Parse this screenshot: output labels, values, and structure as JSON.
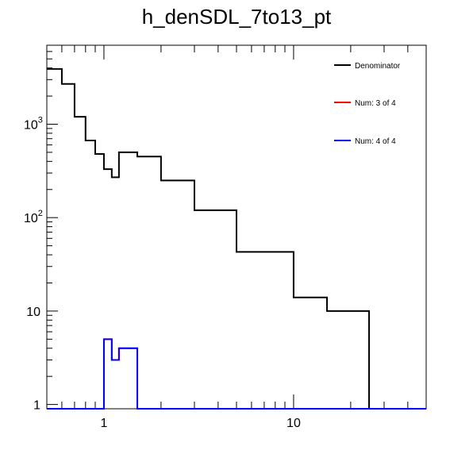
{
  "chart_data": {
    "type": "histogram-step",
    "title": "h_denSDL_7to13_pt",
    "xlabel": "",
    "ylabel": "",
    "x_scale": "log",
    "y_scale": "log",
    "xlim": [
      0.5,
      50
    ],
    "ylim": [
      0.9,
      7000
    ],
    "grid": false,
    "legend_position": "top-right",
    "x_tick_labels": [
      {
        "value": 1,
        "label": "1"
      },
      {
        "value": 10,
        "label": "10"
      }
    ],
    "y_tick_labels": [
      {
        "value": 1,
        "label": "1"
      },
      {
        "value": 10,
        "label": "10"
      },
      {
        "value": 100,
        "label": "10",
        "sup": "2"
      },
      {
        "value": 1000,
        "label": "10",
        "sup": "3"
      }
    ],
    "bin_edges": [
      0.5,
      0.6,
      0.7,
      0.8,
      0.9,
      1.0,
      1.1,
      1.2,
      1.5,
      2.0,
      3.0,
      5.0,
      10.0,
      15.0,
      25.0,
      50.0
    ],
    "series": [
      {
        "name": "Denominator",
        "color": "#000000",
        "values": [
          3900,
          2700,
          1200,
          670,
          480,
          330,
          270,
          500,
          450,
          250,
          120,
          43,
          14,
          10,
          0
        ]
      },
      {
        "name": "Num: 3 of 4",
        "color": "#ff0000",
        "values": [
          0,
          0,
          0,
          0,
          0,
          5,
          3,
          4,
          0,
          0,
          0,
          0,
          0,
          0,
          0
        ]
      },
      {
        "name": "Num: 4 of 4",
        "color": "#0000ff",
        "values": [
          0,
          0,
          0,
          0,
          0,
          5,
          3,
          4,
          0,
          0,
          0,
          0,
          0,
          0,
          0
        ]
      }
    ]
  }
}
